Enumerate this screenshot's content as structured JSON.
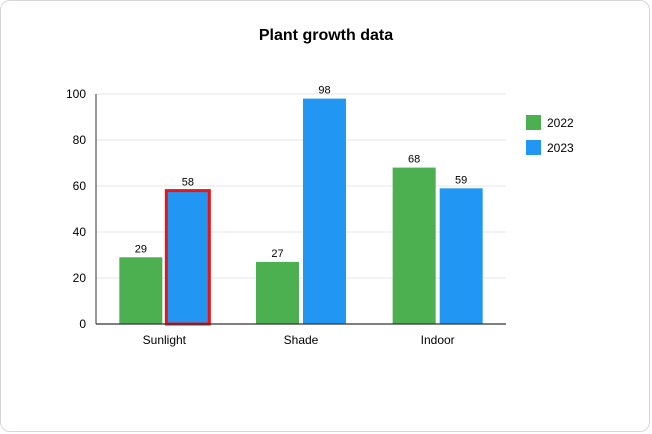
{
  "chart_data": {
    "type": "bar",
    "title": "Plant growth data",
    "xlabel": "",
    "ylabel": "",
    "categories": [
      "Sunlight",
      "Shade",
      "Indoor"
    ],
    "series": [
      {
        "name": "2022",
        "values": [
          29,
          27,
          68
        ],
        "color": "#4CAF50"
      },
      {
        "name": "2023",
        "values": [
          58,
          98,
          59
        ],
        "color": "#2196F3"
      }
    ],
    "ylim": [
      0,
      100
    ],
    "yticks": [
      0,
      20,
      40,
      60,
      80,
      100
    ],
    "grid": true,
    "legend_position": "right",
    "highlight": {
      "series": "2023",
      "category": "Sunlight",
      "outline_color": "#E8141A"
    }
  }
}
